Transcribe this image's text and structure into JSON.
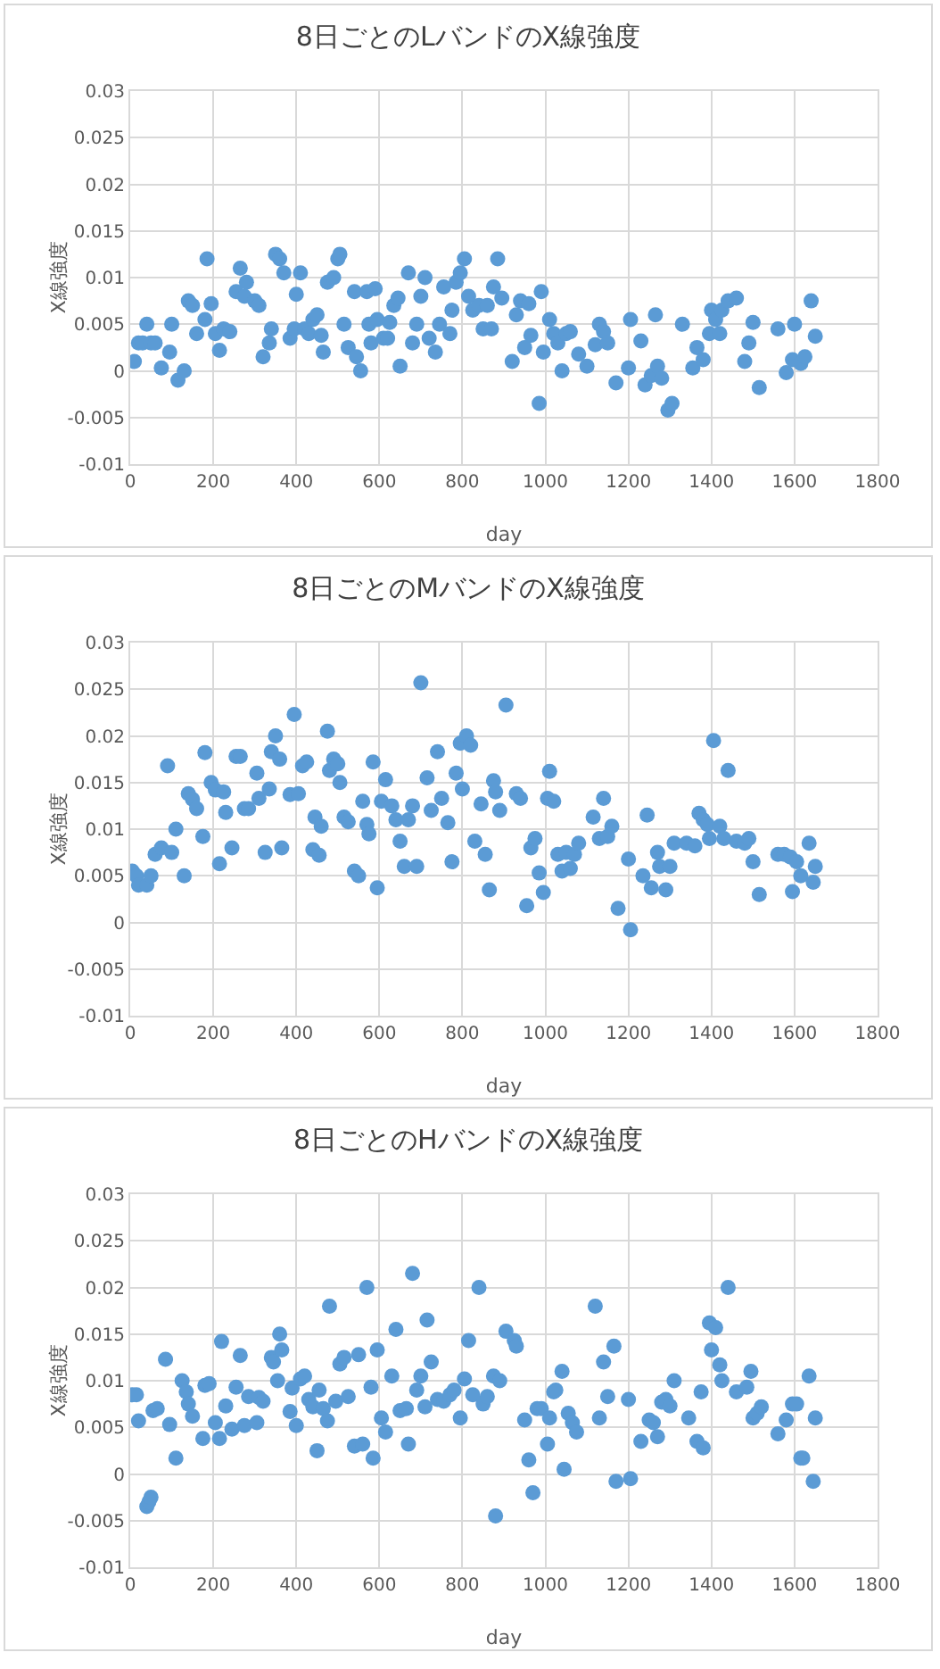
{
  "chart_data": [
    {
      "type": "scatter",
      "title": "8日ごとのLバンドのX線強度",
      "xlabel": "day",
      "ylabel": "X線強度",
      "marker": "circle",
      "grid": true,
      "xlim": [
        0,
        1800
      ],
      "xticks": [
        0,
        200,
        400,
        600,
        800,
        1000,
        1200,
        1400,
        1600,
        1800
      ],
      "ylim": [
        -0.01,
        0.03
      ],
      "yticks": [
        -0.01,
        -0.005,
        0,
        0.005,
        0.01,
        0.015,
        0.02,
        0.025,
        0.03
      ],
      "series": [
        {
          "color": "#5b9bd5",
          "x": [
            10,
            20,
            30,
            40,
            50,
            60,
            75,
            95,
            100,
            115,
            130,
            140,
            150,
            160,
            180,
            185,
            195,
            205,
            215,
            225,
            240,
            255,
            265,
            275,
            280,
            300,
            310,
            320,
            335,
            340,
            350,
            360,
            370,
            385,
            395,
            400,
            410,
            420,
            430,
            440,
            450,
            460,
            465,
            475,
            490,
            500,
            505,
            515,
            525,
            540,
            545,
            555,
            570,
            575,
            580,
            590,
            595,
            610,
            620,
            625,
            635,
            645,
            650,
            670,
            680,
            690,
            700,
            710,
            720,
            735,
            745,
            755,
            770,
            775,
            785,
            795,
            805,
            815,
            825,
            840,
            850,
            860,
            870,
            875,
            885,
            895,
            920,
            930,
            940,
            950,
            960,
            965,
            985,
            990,
            995,
            1010,
            1020,
            1030,
            1040,
            1050,
            1060,
            1080,
            1100,
            1120,
            1130,
            1140,
            1150,
            1170,
            1200,
            1205,
            1230,
            1240,
            1255,
            1265,
            1270,
            1280,
            1295,
            1305,
            1330,
            1355,
            1365,
            1380,
            1395,
            1400,
            1410,
            1420,
            1425,
            1440,
            1460,
            1480,
            1490,
            1500,
            1515,
            1560,
            1580,
            1595,
            1600,
            1615,
            1625,
            1640,
            1650
          ],
          "values": [
            0.001,
            0.003,
            0.003,
            0.005,
            0.003,
            0.003,
            0.0003,
            0.002,
            0.005,
            -0.001,
            0,
            0.0075,
            0.007,
            0.004,
            0.0055,
            0.012,
            0.0072,
            0.004,
            0.0022,
            0.0045,
            0.0042,
            0.0085,
            0.011,
            0.008,
            0.0095,
            0.0075,
            0.007,
            0.0015,
            0.003,
            0.0045,
            0.0125,
            0.012,
            0.0105,
            0.0035,
            0.0045,
            0.0082,
            0.0105,
            0.0045,
            0.004,
            0.0055,
            0.006,
            0.0038,
            0.002,
            0.0095,
            0.01,
            0.012,
            0.0125,
            0.005,
            0.0025,
            0.0085,
            0.0015,
            0,
            0.0085,
            0.005,
            0.003,
            0.0088,
            0.0055,
            0.0035,
            0.0035,
            0.0052,
            0.007,
            0.0078,
            0.0005,
            0.0105,
            0.003,
            0.005,
            0.008,
            0.01,
            0.0035,
            0.002,
            0.005,
            0.009,
            0.004,
            0.0065,
            0.0095,
            0.0105,
            0.012,
            0.008,
            0.0065,
            0.007,
            0.0045,
            0.007,
            0.0045,
            0.009,
            0.012,
            0.0078,
            0.001,
            0.006,
            0.0075,
            0.0025,
            0.0072,
            0.0038,
            -0.0035,
            0.0085,
            0.002,
            0.0055,
            0.004,
            0.003,
            0,
            0.004,
            0.0042,
            0.0018,
            0.0005,
            0.0028,
            0.005,
            0.0042,
            0.003,
            -0.0013,
            0.0003,
            0.0055,
            0.0032,
            -0.0015,
            -0.0005,
            0.006,
            0.0005,
            -0.0008,
            -0.0042,
            -0.0035,
            0.005,
            0.0003,
            0.0025,
            0.0012,
            0.004,
            0.0065,
            0.0055,
            0.004,
            0.0065,
            0.0075,
            0.0078,
            0.001,
            0.003,
            0.0052,
            -0.0018,
            0.0045,
            -0.0002,
            0.0012,
            0.005,
            0.0008,
            0.0015,
            0.0075,
            0.0037
          ]
        }
      ]
    },
    {
      "type": "scatter",
      "title": "8日ごとのMバンドのX線強度",
      "xlabel": "day",
      "ylabel": "X線強度",
      "marker": "circle",
      "grid": true,
      "xlim": [
        0,
        1800
      ],
      "xticks": [
        0,
        200,
        400,
        600,
        800,
        1000,
        1200,
        1400,
        1600,
        1800
      ],
      "ylim": [
        -0.01,
        0.03
      ],
      "yticks": [
        -0.01,
        -0.005,
        0,
        0.005,
        0.01,
        0.015,
        0.02,
        0.025,
        0.03
      ],
      "series": [
        {
          "color": "#5b9bd5",
          "x": [
            5,
            15,
            20,
            40,
            50,
            60,
            75,
            90,
            100,
            110,
            130,
            140,
            150,
            160,
            175,
            180,
            195,
            205,
            215,
            225,
            230,
            245,
            255,
            265,
            275,
            285,
            305,
            310,
            325,
            335,
            340,
            350,
            360,
            365,
            385,
            395,
            405,
            415,
            425,
            440,
            445,
            455,
            460,
            475,
            480,
            490,
            500,
            505,
            515,
            525,
            540,
            550,
            560,
            570,
            575,
            585,
            595,
            605,
            615,
            630,
            640,
            650,
            660,
            670,
            680,
            690,
            700,
            715,
            725,
            740,
            750,
            765,
            775,
            785,
            795,
            800,
            810,
            820,
            830,
            845,
            855,
            865,
            875,
            880,
            890,
            905,
            930,
            940,
            955,
            965,
            975,
            985,
            995,
            1005,
            1010,
            1020,
            1030,
            1040,
            1050,
            1060,
            1070,
            1080,
            1115,
            1130,
            1140,
            1150,
            1160,
            1175,
            1200,
            1205,
            1235,
            1245,
            1255,
            1270,
            1275,
            1290,
            1300,
            1310,
            1340,
            1360,
            1370,
            1380,
            1390,
            1395,
            1405,
            1420,
            1430,
            1440,
            1460,
            1480,
            1490,
            1500,
            1515,
            1560,
            1575,
            1590,
            1595,
            1605,
            1615,
            1635,
            1645,
            1650
          ],
          "values": [
            0.0055,
            0.005,
            0.004,
            0.004,
            0.005,
            0.0073,
            0.008,
            0.0168,
            0.0075,
            0.01,
            0.005,
            0.0138,
            0.0132,
            0.0122,
            0.0092,
            0.0182,
            0.015,
            0.0142,
            0.0063,
            0.014,
            0.0118,
            0.008,
            0.0178,
            0.0178,
            0.0122,
            0.0122,
            0.016,
            0.0133,
            0.0075,
            0.0143,
            0.0183,
            0.02,
            0.0175,
            0.008,
            0.0137,
            0.0223,
            0.0138,
            0.0168,
            0.0172,
            0.0078,
            0.0113,
            0.0072,
            0.0103,
            0.0205,
            0.0163,
            0.0175,
            0.017,
            0.015,
            0.0113,
            0.0108,
            0.0055,
            0.005,
            0.013,
            0.0105,
            0.0095,
            0.0172,
            0.0037,
            0.013,
            0.0153,
            0.0125,
            0.011,
            0.0087,
            0.006,
            0.011,
            0.0125,
            0.006,
            0.0257,
            0.0155,
            0.012,
            0.0183,
            0.0133,
            0.0107,
            0.0065,
            0.016,
            0.0192,
            0.0143,
            0.02,
            0.019,
            0.0087,
            0.0127,
            0.0073,
            0.0035,
            0.0152,
            0.014,
            0.012,
            0.0233,
            0.0138,
            0.0133,
            0.0018,
            0.008,
            0.009,
            0.0053,
            0.0032,
            0.0133,
            0.0162,
            0.013,
            0.0073,
            0.0055,
            0.0075,
            0.0058,
            0.0073,
            0.0085,
            0.0113,
            0.009,
            0.0133,
            0.0092,
            0.0103,
            0.0015,
            0.0068,
            -0.0008,
            0.005,
            0.0115,
            0.0037,
            0.0075,
            0.006,
            0.0035,
            0.006,
            0.0085,
            0.0085,
            0.0082,
            0.0117,
            0.011,
            0.0105,
            0.009,
            0.0195,
            0.0103,
            0.009,
            0.0163,
            0.0087,
            0.0085,
            0.009,
            0.0065,
            0.003,
            0.0073,
            0.0073,
            0.007,
            0.0033,
            0.0065,
            0.005,
            0.0085,
            0.0043,
            0.006
          ]
        }
      ]
    },
    {
      "type": "scatter",
      "title": "8日ごとのHバンドのX線強度",
      "xlabel": "day",
      "ylabel": "X線強度",
      "marker": "circle",
      "grid": true,
      "xlim": [
        0,
        1800
      ],
      "xticks": [
        0,
        200,
        400,
        600,
        800,
        1000,
        1200,
        1400,
        1600,
        1800
      ],
      "ylim": [
        -0.01,
        0.03
      ],
      "yticks": [
        -0.01,
        -0.005,
        0,
        0.005,
        0.01,
        0.015,
        0.02,
        0.025,
        0.03
      ],
      "series": [
        {
          "color": "#5b9bd5",
          "x": [
            5,
            15,
            20,
            40,
            45,
            50,
            55,
            65,
            85,
            95,
            110,
            125,
            135,
            140,
            150,
            175,
            180,
            190,
            205,
            215,
            220,
            230,
            245,
            255,
            265,
            275,
            285,
            305,
            310,
            320,
            340,
            345,
            355,
            360,
            365,
            385,
            390,
            400,
            410,
            420,
            430,
            440,
            450,
            455,
            465,
            475,
            480,
            495,
            505,
            515,
            525,
            540,
            550,
            560,
            570,
            580,
            585,
            595,
            605,
            615,
            630,
            640,
            650,
            665,
            670,
            680,
            690,
            700,
            710,
            715,
            725,
            740,
            755,
            770,
            780,
            795,
            805,
            815,
            825,
            840,
            850,
            860,
            875,
            880,
            890,
            905,
            925,
            930,
            950,
            960,
            970,
            980,
            990,
            1005,
            1010,
            1020,
            1025,
            1040,
            1045,
            1055,
            1065,
            1075,
            1120,
            1130,
            1140,
            1150,
            1165,
            1170,
            1200,
            1205,
            1230,
            1250,
            1260,
            1270,
            1280,
            1290,
            1300,
            1310,
            1345,
            1365,
            1375,
            1380,
            1395,
            1400,
            1410,
            1420,
            1425,
            1440,
            1460,
            1485,
            1495,
            1500,
            1510,
            1520,
            1560,
            1580,
            1595,
            1605,
            1615,
            1620,
            1635,
            1645,
            1650
          ],
          "values": [
            0.0085,
            0.0085,
            0.0057,
            -0.0035,
            -0.003,
            -0.0025,
            0.0068,
            0.007,
            0.0123,
            0.0053,
            0.0017,
            0.01,
            0.0088,
            0.0075,
            0.0062,
            0.0038,
            0.0095,
            0.0097,
            0.0055,
            0.0038,
            0.0142,
            0.0073,
            0.0048,
            0.0093,
            0.0127,
            0.0052,
            0.0083,
            0.0055,
            0.0082,
            0.0078,
            0.0125,
            0.012,
            0.01,
            0.015,
            0.0133,
            0.0067,
            0.0092,
            0.0052,
            0.0102,
            0.0105,
            0.008,
            0.0072,
            0.0025,
            0.009,
            0.007,
            0.0057,
            0.018,
            0.0078,
            0.0118,
            0.0125,
            0.0083,
            0.003,
            0.0128,
            0.0032,
            0.02,
            0.0093,
            0.0017,
            0.0133,
            0.006,
            0.0045,
            0.0105,
            0.0155,
            0.0068,
            0.007,
            0.0032,
            0.0215,
            0.009,
            0.0105,
            0.0072,
            0.0165,
            0.012,
            0.008,
            0.0078,
            0.0085,
            0.009,
            0.006,
            0.0102,
            0.0143,
            0.0085,
            0.02,
            0.0075,
            0.0083,
            0.0105,
            -0.0045,
            0.01,
            0.0153,
            0.0143,
            0.0137,
            0.0058,
            0.0015,
            -0.002,
            0.007,
            0.007,
            0.0032,
            0.006,
            0.0088,
            0.009,
            0.011,
            0.0005,
            0.0065,
            0.0055,
            0.0045,
            0.018,
            0.006,
            0.012,
            0.0083,
            0.0137,
            -0.0008,
            0.008,
            -0.0005,
            0.0035,
            0.0058,
            0.0055,
            0.004,
            0.0077,
            0.008,
            0.0073,
            0.01,
            0.006,
            0.0035,
            0.0088,
            0.0028,
            0.0162,
            0.0133,
            0.0157,
            0.0117,
            0.01,
            0.02,
            0.0088,
            0.0093,
            0.011,
            0.006,
            0.0065,
            0.0072,
            0.0043,
            0.0058,
            0.0075,
            0.0075,
            0.0017,
            0.0017,
            0.0105,
            -0.0008,
            0.006
          ]
        }
      ]
    }
  ]
}
